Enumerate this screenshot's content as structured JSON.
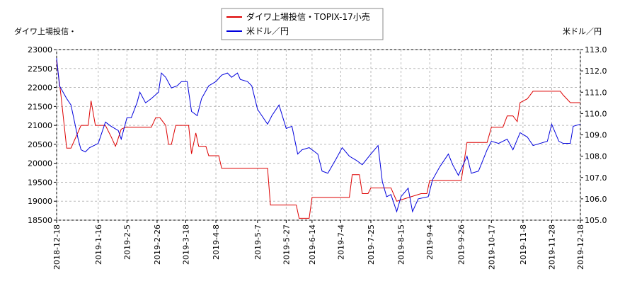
{
  "chart_data": {
    "type": "line",
    "y_label": "ダイワ上場投信・",
    "y2_label": "米ドル／円",
    "xlim": [
      "2018-12-18",
      "2019-12-18"
    ],
    "xticks": [
      "2018-12-18",
      "2019-1-16",
      "2019-2-5",
      "2019-2-26",
      "2019-3-18",
      "2019-4-8",
      "2019-5-7",
      "2019-5-27",
      "2019-6-14",
      "2019-7-4",
      "2019-7-25",
      "2019-8-15",
      "2019-9-4",
      "2019-9-26",
      "2019-10-17",
      "2019-11-8",
      "2019-11-28",
      "2019-12-18"
    ],
    "ylim": [
      18500,
      23000
    ],
    "yticks": [
      18500,
      19000,
      19500,
      20000,
      20500,
      21000,
      21500,
      22000,
      22500,
      23000
    ],
    "y2lim": [
      105,
      113
    ],
    "y2ticks": [
      {
        "value": 105,
        "label": "105.0"
      },
      {
        "value": 106,
        "label": "106.0"
      },
      {
        "value": 107,
        "label": "107.0"
      },
      {
        "value": 108,
        "label": "108.0"
      },
      {
        "value": 109,
        "label": "109.0"
      },
      {
        "value": 110,
        "label": "110.0"
      },
      {
        "value": 111,
        "label": "111.0"
      },
      {
        "value": 112,
        "label": "112.0"
      },
      {
        "value": 113,
        "label": "113.0"
      }
    ],
    "grid": true,
    "series": [
      {
        "name": "ダイワ上場投信・TOPIX-17小売",
        "color": "#dd0000",
        "axis": "y",
        "x": [
          "2018-12-18",
          "2018-12-21",
          "2018-12-25",
          "2018-12-28",
          "2019-1-4",
          "2019-1-9",
          "2019-1-11",
          "2019-1-14",
          "2019-1-21",
          "2019-1-25",
          "2019-1-28",
          "2019-1-29",
          "2019-2-1",
          "2019-2-4",
          "2019-2-22",
          "2019-2-25",
          "2019-2-28",
          "2019-3-4",
          "2019-3-6",
          "2019-3-8",
          "2019-3-11",
          "2019-3-20",
          "2019-3-22",
          "2019-3-25",
          "2019-3-27",
          "2019-4-1",
          "2019-4-3",
          "2019-4-10",
          "2019-4-12",
          "2019-5-14",
          "2019-5-16",
          "2019-6-3",
          "2019-6-5",
          "2019-6-12",
          "2019-6-14",
          "2019-7-10",
          "2019-7-12",
          "2019-7-17",
          "2019-7-19",
          "2019-7-23",
          "2019-7-25",
          "2019-8-8",
          "2019-8-12",
          "2019-8-29",
          "2019-9-2",
          "2019-9-4",
          "2019-9-26",
          "2019-9-30",
          "2019-10-14",
          "2019-10-17",
          "2019-10-25",
          "2019-10-28",
          "2019-11-1",
          "2019-11-4",
          "2019-11-6",
          "2019-11-11",
          "2019-11-13",
          "2019-11-15",
          "2019-12-4",
          "2019-12-6",
          "2019-12-11",
          "2019-12-18"
        ],
        "values": [
          22700,
          21800,
          20400,
          20400,
          21000,
          21000,
          21650,
          21000,
          21000,
          20700,
          20450,
          20550,
          20900,
          20950,
          20950,
          21200,
          21200,
          21000,
          20500,
          20500,
          21000,
          21000,
          20250,
          20800,
          20450,
          20450,
          20200,
          20200,
          19870,
          19870,
          18900,
          18900,
          18550,
          18550,
          19100,
          19100,
          19700,
          19700,
          19200,
          19200,
          19350,
          19350,
          19000,
          19200,
          19200,
          19550,
          19550,
          20550,
          20550,
          20950,
          20950,
          21250,
          21250,
          21100,
          21600,
          21700,
          21800,
          21900,
          21900,
          21800,
          21600,
          21600
        ]
      },
      {
        "name": "米ドル／円",
        "color": "#0000dd",
        "axis": "y2",
        "x": [
          "2018-12-18",
          "2018-12-20",
          "2018-12-25",
          "2018-12-28",
          "2019-1-2",
          "2019-1-4",
          "2019-1-7",
          "2019-1-10",
          "2019-1-16",
          "2019-1-21",
          "2019-1-25",
          "2019-1-30",
          "2019-2-1",
          "2019-2-5",
          "2019-2-8",
          "2019-2-12",
          "2019-2-14",
          "2019-2-18",
          "2019-2-22",
          "2019-2-27",
          "2019-3-1",
          "2019-3-4",
          "2019-3-8",
          "2019-3-12",
          "2019-3-15",
          "2019-3-19",
          "2019-3-22",
          "2019-3-26",
          "2019-3-29",
          "2019-4-3",
          "2019-4-8",
          "2019-4-12",
          "2019-4-16",
          "2019-4-19",
          "2019-4-23",
          "2019-4-25",
          "2019-4-30",
          "2019-5-3",
          "2019-5-7",
          "2019-5-10",
          "2019-5-14",
          "2019-5-17",
          "2019-5-22",
          "2019-5-27",
          "2019-5-31",
          "2019-6-4",
          "2019-6-7",
          "2019-6-12",
          "2019-6-18",
          "2019-6-21",
          "2019-6-25",
          "2019-7-1",
          "2019-7-5",
          "2019-7-10",
          "2019-7-15",
          "2019-7-19",
          "2019-7-25",
          "2019-7-30",
          "2019-8-2",
          "2019-8-5",
          "2019-8-8",
          "2019-8-12",
          "2019-8-15",
          "2019-8-20",
          "2019-8-23",
          "2019-8-27",
          "2019-9-3",
          "2019-9-6",
          "2019-9-11",
          "2019-9-17",
          "2019-9-20",
          "2019-9-24",
          "2019-9-30",
          "2019-10-3",
          "2019-10-8",
          "2019-10-14",
          "2019-10-17",
          "2019-10-22",
          "2019-10-28",
          "2019-11-1",
          "2019-11-6",
          "2019-11-11",
          "2019-11-15",
          "2019-11-20",
          "2019-11-25",
          "2019-11-28",
          "2019-12-3",
          "2019-12-6",
          "2019-12-11",
          "2019-12-13",
          "2019-12-18"
        ],
        "values": [
          112.6,
          111.3,
          110.7,
          110.4,
          108.8,
          108.3,
          108.2,
          108.4,
          108.6,
          109.6,
          109.4,
          109.2,
          108.8,
          109.8,
          109.8,
          110.5,
          111.0,
          110.5,
          110.7,
          111.0,
          111.9,
          111.7,
          111.2,
          111.3,
          111.5,
          111.5,
          110.1,
          109.9,
          110.7,
          111.3,
          111.5,
          111.8,
          111.9,
          111.7,
          111.9,
          111.6,
          111.5,
          111.3,
          110.2,
          109.9,
          109.5,
          109.9,
          110.4,
          109.3,
          109.4,
          108.1,
          108.3,
          108.4,
          108.1,
          107.3,
          107.2,
          107.9,
          108.4,
          108.0,
          107.8,
          107.6,
          108.1,
          108.5,
          106.8,
          106.1,
          106.2,
          105.4,
          106.1,
          106.5,
          105.4,
          106.0,
          106.1,
          106.9,
          107.5,
          108.1,
          107.6,
          107.1,
          108.0,
          107.2,
          107.3,
          108.3,
          108.7,
          108.6,
          108.8,
          108.3,
          109.1,
          108.9,
          108.5,
          108.6,
          108.7,
          109.5,
          108.7,
          108.6,
          108.6,
          109.4,
          109.5
        ]
      }
    ]
  }
}
